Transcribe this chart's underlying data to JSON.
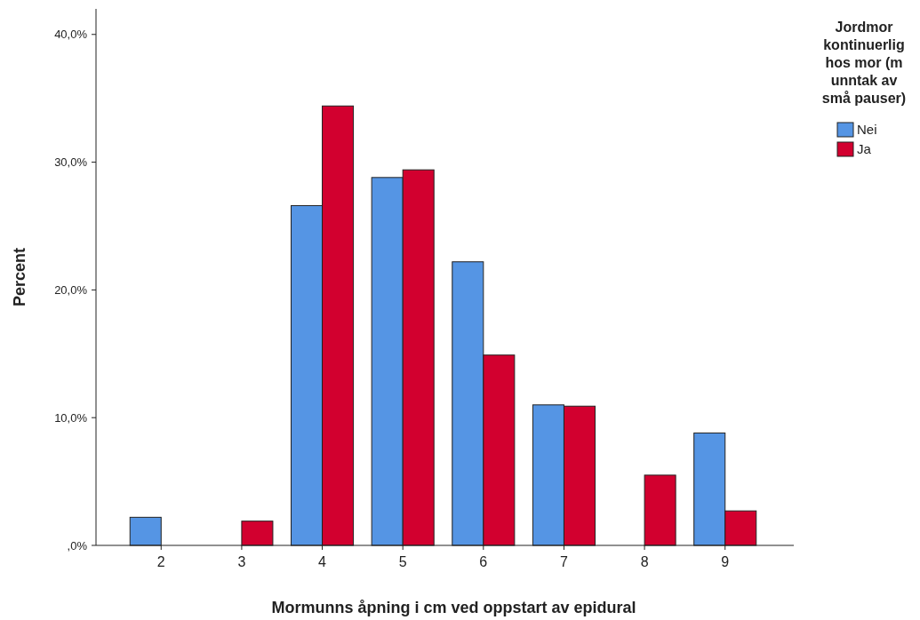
{
  "chart_data": {
    "type": "bar",
    "xlabel": "Mormunns åpning i cm ved oppstart av epidural",
    "ylabel": "Percent",
    "legend_title": "Jordmor kontinuerlig hos mor (m unntak av små pauser)",
    "legend": "right",
    "categories": [
      "2",
      "3",
      "4",
      "5",
      "6",
      "7",
      "8",
      "9"
    ],
    "series": [
      {
        "name": "Nei",
        "color": "#5595e4",
        "values": [
          2.2,
          0,
          26.6,
          28.8,
          22.2,
          11.0,
          0,
          8.8
        ]
      },
      {
        "name": "Ja",
        "color": "#d2002f",
        "values": [
          0,
          1.9,
          34.4,
          29.4,
          14.9,
          10.9,
          5.5,
          2.7
        ]
      }
    ],
    "ylim": [
      0,
      42
    ],
    "yticks": [
      {
        "value": 0,
        "label": ",0%"
      },
      {
        "value": 10,
        "label": "10,0%"
      },
      {
        "value": 20,
        "label": "20,0%"
      },
      {
        "value": 30,
        "label": "30,0%"
      },
      {
        "value": 40,
        "label": "40,0%"
      }
    ],
    "grid": false
  }
}
